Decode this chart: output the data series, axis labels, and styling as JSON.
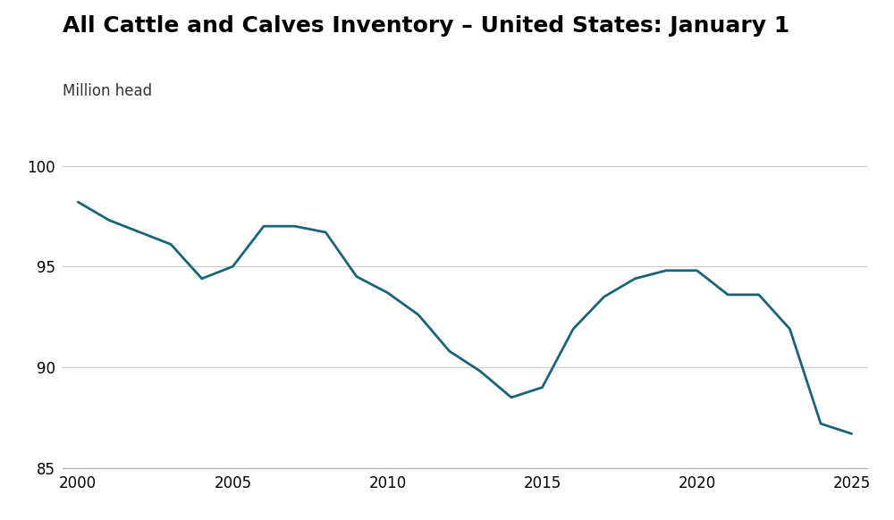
{
  "title": "All Cattle and Calves Inventory – United States: January 1",
  "subtitle": "Million head",
  "line_color": "#1a6478",
  "background_color": "#ffffff",
  "grid_color": "#cccccc",
  "years": [
    2000,
    2001,
    2002,
    2003,
    2004,
    2005,
    2006,
    2007,
    2008,
    2009,
    2010,
    2011,
    2012,
    2013,
    2014,
    2015,
    2016,
    2017,
    2018,
    2019,
    2020,
    2021,
    2022,
    2023,
    2024,
    2025
  ],
  "values": [
    98.2,
    97.3,
    96.7,
    96.1,
    94.4,
    95.0,
    97.0,
    97.0,
    96.7,
    94.5,
    93.7,
    92.6,
    90.8,
    89.8,
    88.5,
    89.0,
    91.9,
    93.5,
    94.4,
    94.8,
    94.8,
    93.6,
    93.6,
    91.9,
    87.2,
    86.7
  ],
  "ylim": [
    85,
    101
  ],
  "xlim": [
    1999.5,
    2025.5
  ],
  "yticks": [
    85,
    90,
    95,
    100
  ],
  "xticks": [
    2000,
    2005,
    2010,
    2015,
    2020,
    2025
  ],
  "title_fontsize": 18,
  "subtitle_fontsize": 12,
  "tick_fontsize": 12,
  "line_width": 2.0
}
